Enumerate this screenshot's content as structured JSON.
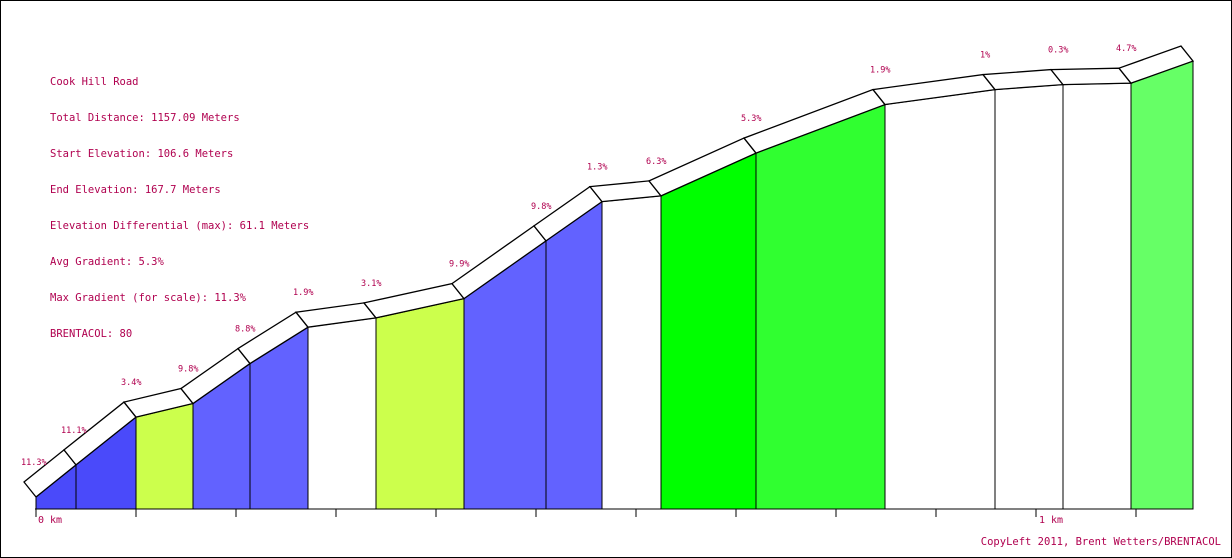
{
  "info": {
    "title": "Cook Hill Road",
    "total_distance": "Total Distance: 1157.09 Meters",
    "start_elevation": "Start Elevation: 106.6 Meters",
    "end_elevation": "End Elevation: 167.7 Meters",
    "elevation_differential": "Elevation Differential (max): 61.1 Meters",
    "avg_gradient": "Avg Gradient: 5.3%",
    "max_gradient": "Max Gradient (for scale): 11.3%",
    "brentacol": "BRENTACOL: 80"
  },
  "copyleft": "CopyLeft 2011, Brent Wetters/BRENTACOL",
  "colors": {
    "text": "#b0004f",
    "grade_11": "#4a4afa",
    "grade_9": "#6262ff",
    "grade_3": "#ccff4c",
    "grade_5": "#30ff30",
    "grade_6": "#00ff00",
    "grade_4": "#66ff66",
    "grade_low": "#ffffff"
  },
  "chart_data": {
    "type": "area",
    "title": "Cook Hill Road",
    "x_unit": "km",
    "x_range": [
      0,
      1.157
    ],
    "y_range": [
      106.6,
      167.7
    ],
    "x_tick_labels": [
      "0 km",
      "1 km"
    ],
    "x_ticks_km": [
      0,
      0.1,
      0.2,
      0.3,
      0.4,
      0.5,
      0.6,
      0.7,
      0.8,
      0.9,
      1.0,
      1.1
    ],
    "segments": [
      {
        "x": [
          0.0,
          0.04
        ],
        "elev": [
          106.6,
          111.1
        ],
        "gradient_label": "11.3%",
        "color": "#4a4afa"
      },
      {
        "x": [
          0.04,
          0.1
        ],
        "elev": [
          111.1,
          117.8
        ],
        "gradient_label": "11.1%",
        "color": "#4a4afa"
      },
      {
        "x": [
          0.1,
          0.157
        ],
        "elev": [
          117.8,
          119.7
        ],
        "gradient_label": "3.4%",
        "color": "#ccff4c"
      },
      {
        "x": [
          0.157,
          0.214
        ],
        "elev": [
          119.7,
          125.3
        ],
        "gradient_label": "9.8%",
        "color": "#6262ff"
      },
      {
        "x": [
          0.214,
          0.272
        ],
        "elev": [
          125.3,
          130.4
        ],
        "gradient_label": "8.8%",
        "color": "#6262ff"
      },
      {
        "x": [
          0.272,
          0.34
        ],
        "elev": [
          130.4,
          131.7
        ],
        "gradient_label": "1.9%",
        "color": "#ffffff"
      },
      {
        "x": [
          0.34,
          0.428
        ],
        "elev": [
          131.7,
          134.4
        ],
        "gradient_label": "3.1%",
        "color": "#ccff4c"
      },
      {
        "x": [
          0.428,
          0.51
        ],
        "elev": [
          134.4,
          142.5
        ],
        "gradient_label": "9.9%",
        "color": "#6262ff"
      },
      {
        "x": [
          0.51,
          0.566
        ],
        "elev": [
          142.5,
          148.0
        ],
        "gradient_label": "9.8%",
        "color": "#6262ff"
      },
      {
        "x": [
          0.566,
          0.625
        ],
        "elev": [
          148.0,
          148.8
        ],
        "gradient_label": "1.3%",
        "color": "#ffffff"
      },
      {
        "x": [
          0.625,
          0.72
        ],
        "elev": [
          148.8,
          154.8
        ],
        "gradient_label": "6.3%",
        "color": "#00ff00"
      },
      {
        "x": [
          0.72,
          0.849
        ],
        "elev": [
          154.8,
          161.6
        ],
        "gradient_label": "5.3%",
        "color": "#30ff30"
      },
      {
        "x": [
          0.849,
          0.959
        ],
        "elev": [
          161.6,
          163.7
        ],
        "gradient_label": "1.9%",
        "color": "#ffffff"
      },
      {
        "x": [
          0.959,
          1.027
        ],
        "elev": [
          163.7,
          164.4
        ],
        "gradient_label": "1%",
        "color": "#ffffff"
      },
      {
        "x": [
          1.027,
          1.095
        ],
        "elev": [
          164.4,
          164.6
        ],
        "gradient_label": "0.3%",
        "color": "#ffffff"
      },
      {
        "x": [
          1.095,
          1.157
        ],
        "elev": [
          164.6,
          167.7
        ],
        "gradient_label": "4.7%",
        "color": "#66ff66"
      }
    ]
  }
}
